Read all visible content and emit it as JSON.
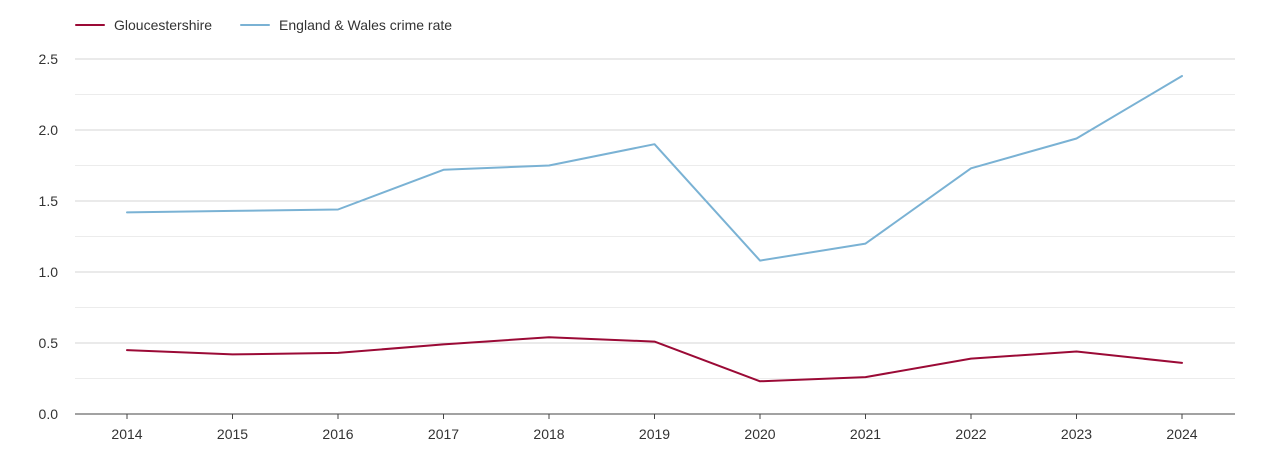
{
  "chart_data": {
    "type": "line",
    "x": [
      "2014",
      "2015",
      "2016",
      "2017",
      "2018",
      "2019",
      "2020",
      "2021",
      "2022",
      "2023",
      "2024"
    ],
    "ylim": [
      0,
      2.5
    ],
    "yticks": [
      "0.0",
      "0.5",
      "1.0",
      "1.5",
      "2.0",
      "2.5"
    ],
    "grid": true,
    "legend_position": "top-left",
    "series": [
      {
        "name": "Gloucestershire",
        "color": "#9b0a36",
        "values": [
          0.45,
          0.42,
          0.43,
          0.49,
          0.54,
          0.51,
          0.23,
          0.26,
          0.39,
          0.44,
          0.36
        ]
      },
      {
        "name": "England & Wales crime rate",
        "color": "#7ab2d4",
        "values": [
          1.42,
          1.43,
          1.44,
          1.72,
          1.75,
          1.9,
          1.08,
          1.2,
          1.73,
          1.94,
          2.38
        ]
      }
    ]
  }
}
